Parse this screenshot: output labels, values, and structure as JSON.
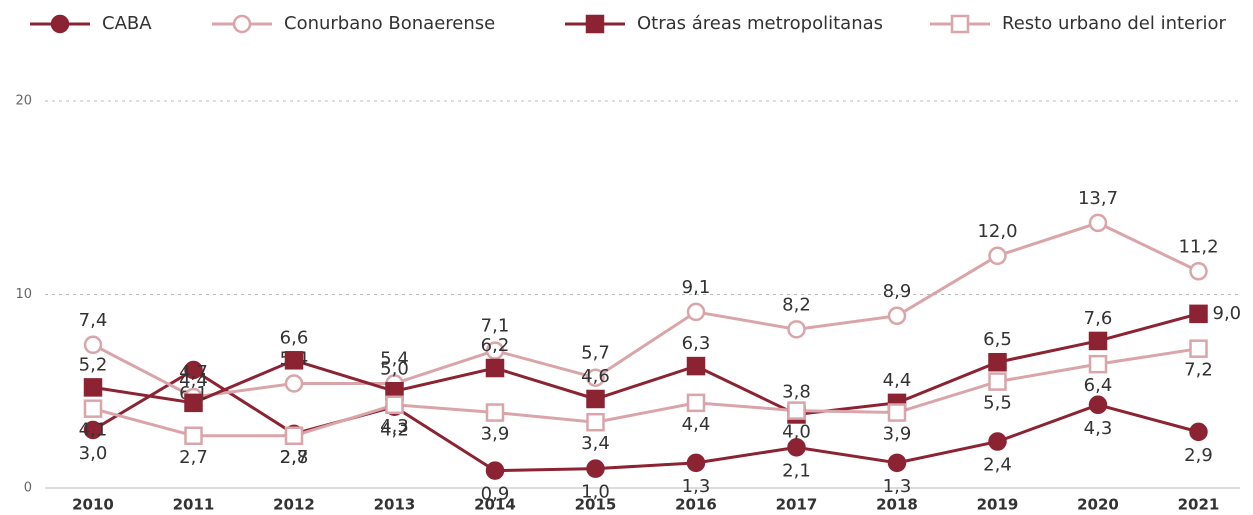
{
  "chart_data": {
    "type": "line",
    "categories": [
      "2010",
      "2011",
      "2012",
      "2013",
      "2014",
      "2015",
      "2016",
      "2017",
      "2018",
      "2019",
      "2020",
      "2021"
    ],
    "series": [
      {
        "name": "CABA",
        "color": "#8b2332",
        "marker": "circle",
        "filled": true,
        "values": [
          3.0,
          6.1,
          2.8,
          4.2,
          0.9,
          1.0,
          1.3,
          2.1,
          1.3,
          2.4,
          4.3,
          2.9
        ],
        "value_labels": [
          "3,0",
          "6,1",
          "2,8",
          "4,2",
          "0,9",
          "1,0",
          "1,3",
          "2,1",
          "1,3",
          "2,4",
          "4,3",
          "2,9"
        ]
      },
      {
        "name": "Conurbano Bonaerense",
        "color": "#d9a5aa",
        "marker": "circle",
        "filled": false,
        "values": [
          7.4,
          4.7,
          5.4,
          5.4,
          7.1,
          5.7,
          9.1,
          8.2,
          8.9,
          12.0,
          13.7,
          11.2
        ],
        "value_labels": [
          "7,4",
          "4,7",
          "5,4",
          "5,4",
          "7,1",
          "5,7",
          "9,1",
          "8,2",
          "8,9",
          "12,0",
          "13,7",
          "11,2"
        ]
      },
      {
        "name": "Otras áreas metropolitanas",
        "color": "#8b2332",
        "marker": "square",
        "filled": true,
        "values": [
          5.2,
          4.4,
          6.6,
          5.0,
          6.2,
          4.6,
          6.3,
          3.8,
          4.4,
          6.5,
          7.6,
          9.0
        ],
        "value_labels": [
          "5,2",
          "4,4",
          "6,6",
          "5,0",
          "6,2",
          "4,6",
          "6,3",
          "3,8",
          "4,4",
          "6,5",
          "7,6",
          "9,0"
        ]
      },
      {
        "name": "Resto urbano del interior",
        "color": "#d9a5aa",
        "marker": "square",
        "filled": false,
        "values": [
          4.1,
          2.7,
          2.7,
          4.3,
          3.9,
          3.4,
          4.4,
          4.0,
          3.9,
          5.5,
          6.4,
          7.2
        ],
        "value_labels": [
          "4,1",
          "2,7",
          "2,7",
          "4,3",
          "3,9",
          "3,4",
          "4,4",
          "4,0",
          "3,9",
          "5,5",
          "6,4",
          "7,2"
        ]
      }
    ],
    "ylim": [
      0,
      20
    ],
    "yticks": [
      0,
      10,
      20
    ],
    "grid": true,
    "legend": "top"
  }
}
